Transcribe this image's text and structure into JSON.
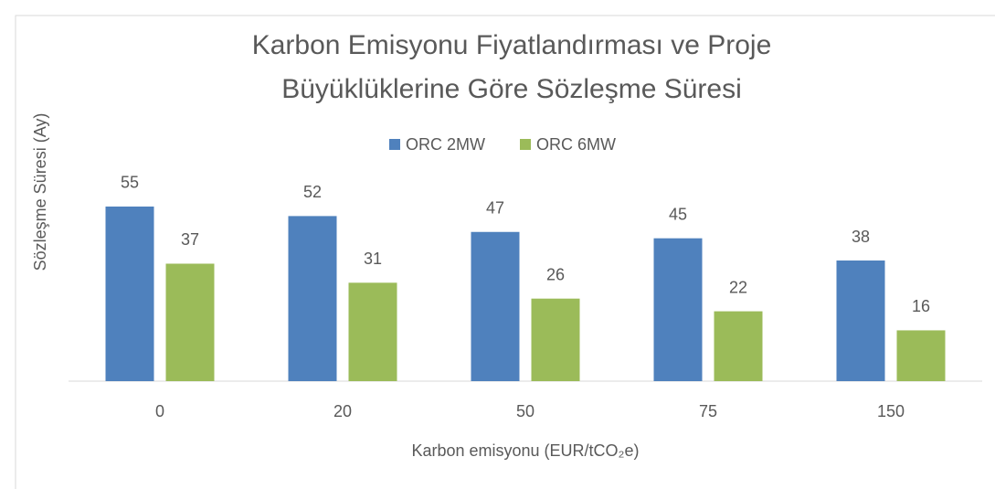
{
  "chart_data": {
    "type": "bar",
    "title": "Karbon Emisyonu Fiyatlandırması ve Proje Büyüklüklerine Göre Sözleşme Süresi",
    "x_label": "Karbon emisyonu (EUR/tCO₂e)",
    "y_label": "Sözleşme Süresi (Ay)",
    "categories": [
      "0",
      "20",
      "50",
      "75",
      "150"
    ],
    "series": [
      {
        "name": "ORC 2MW",
        "color": "#4f81bd",
        "values": [
          55,
          52,
          47,
          45,
          38
        ]
      },
      {
        "name": "ORC 6MW",
        "color": "#9bbb59",
        "values": [
          37,
          31,
          26,
          22,
          16
        ]
      }
    ],
    "ylim": [
      0,
      60
    ],
    "legend": "top"
  }
}
